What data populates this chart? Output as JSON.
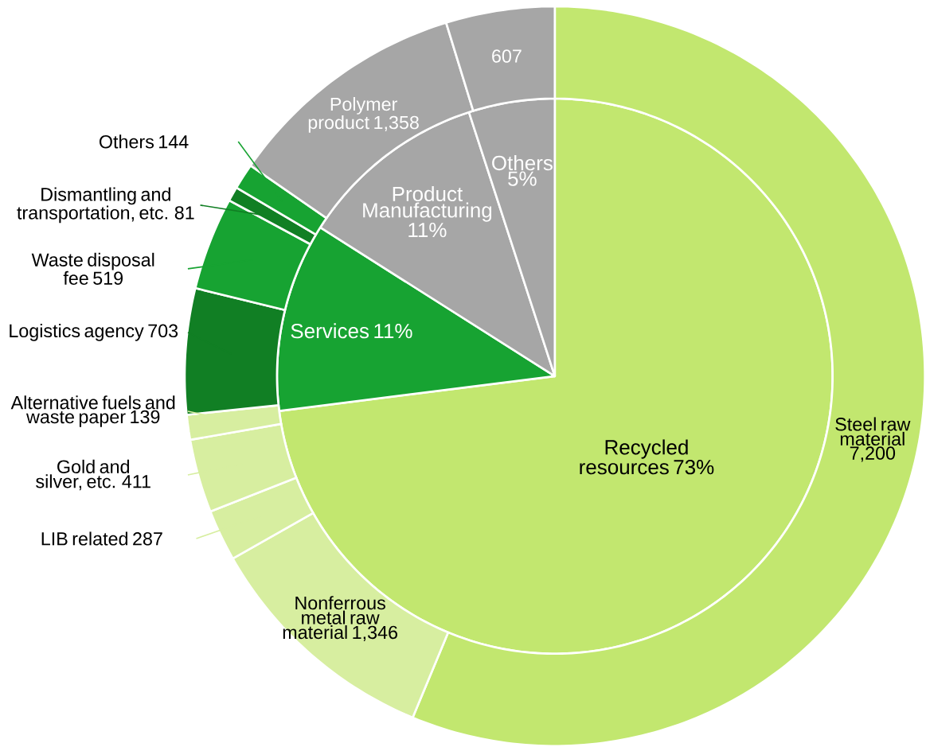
{
  "chart_data": [
    {
      "type": "pie",
      "categories": [
        "Recycled resources",
        "Services",
        "Product Manufacturing",
        "Others"
      ],
      "values": [
        73,
        11,
        11,
        5
      ],
      "value_labels": [
        "73%",
        "11%",
        "11%",
        "5%"
      ],
      "colors": [
        "#c2e76f",
        "#17a332",
        "#a6a6a6",
        "#a6a6a6"
      ]
    },
    {
      "type": "donut",
      "categories": [
        "Steel raw material",
        "Nonferrous metal raw material",
        "LIB related",
        "Gold and silver, etc.",
        "Alternative fuels and waste paper",
        "Logistics agency",
        "Waste disposal fee",
        "Dismantling and transportation, etc.",
        "Others",
        "Polymer product",
        null
      ],
      "values": [
        7200,
        1346,
        287,
        411,
        139,
        703,
        519,
        81,
        144,
        1358,
        607
      ],
      "value_labels": [
        "7,200",
        "1,346",
        "287",
        "411",
        "139",
        "703",
        "519",
        "81",
        "144",
        "1,358",
        "607"
      ],
      "colors": [
        "#c2e76f",
        "#d7eea0",
        "#d7eea0",
        "#d7eea0",
        "#d7eea0",
        "#117f24",
        "#17a332",
        "#117f24",
        "#17a332",
        "#a6a6a6",
        "#a6a6a6"
      ]
    }
  ]
}
